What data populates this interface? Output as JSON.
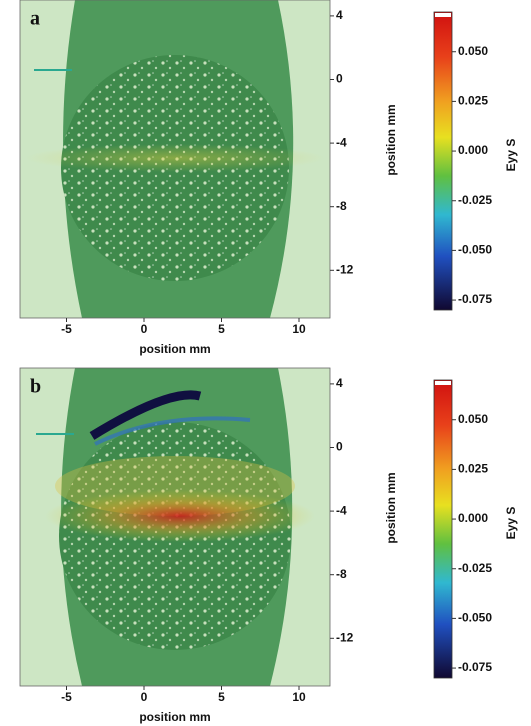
{
  "chart_data": [
    {
      "type": "image",
      "panel_label": "a",
      "xlabel": "position mm",
      "ylabel": "position mm",
      "xlim": [
        -8,
        12
      ],
      "xticks": [
        -5,
        0,
        5,
        10
      ],
      "ylim": [
        -15,
        5
      ],
      "yticks": [
        4,
        0,
        -4,
        -8,
        -12
      ],
      "colorbar": {
        "label": "Eyy S",
        "clim": [
          -0.08,
          0.07
        ],
        "ticks": [
          {
            "value": 0.05,
            "label": "0.050"
          },
          {
            "value": 0.025,
            "label": "0.025"
          },
          {
            "value": 0,
            "label": "0.000"
          },
          {
            "value": -0.025,
            "label": "-0.025"
          },
          {
            "value": -0.05,
            "label": "-0.050"
          },
          {
            "value": -0.075,
            "label": "-0.075"
          }
        ]
      }
    },
    {
      "type": "image",
      "panel_label": "b",
      "xlabel": "position mm",
      "ylabel": "position mm",
      "xlim": [
        -8,
        12
      ],
      "xticks": [
        -5,
        0,
        5,
        10
      ],
      "ylim": [
        -15,
        5
      ],
      "yticks": [
        4,
        0,
        -4,
        -8,
        -12
      ],
      "colorbar": {
        "label": "Eyy S",
        "clim": [
          -0.08,
          0.07
        ],
        "ticks": [
          {
            "value": 0.05,
            "label": "0.050"
          },
          {
            "value": 0.025,
            "label": "0.025"
          },
          {
            "value": 0,
            "label": "0.000"
          },
          {
            "value": -0.025,
            "label": "-0.025"
          },
          {
            "value": -0.05,
            "label": "-0.050"
          },
          {
            "value": -0.075,
            "label": "-0.075"
          }
        ]
      }
    }
  ]
}
